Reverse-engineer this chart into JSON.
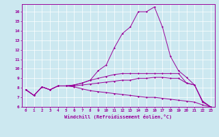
{
  "xlabel": "Windchill (Refroidissement éolien,°C)",
  "xlim": [
    -0.5,
    23.5
  ],
  "ylim": [
    6,
    16.8
  ],
  "xticks": [
    0,
    1,
    2,
    3,
    4,
    5,
    6,
    7,
    8,
    9,
    10,
    11,
    12,
    13,
    14,
    15,
    16,
    17,
    18,
    19,
    20,
    21,
    22,
    23
  ],
  "yticks": [
    6,
    7,
    8,
    9,
    10,
    11,
    12,
    13,
    14,
    15,
    16
  ],
  "background_color": "#cce8f0",
  "line_color": "#990099",
  "grid_color": "#ffffff",
  "series": [
    [
      7.8,
      7.2,
      8.1,
      7.8,
      8.2,
      8.2,
      8.1,
      7.9,
      7.7,
      7.6,
      7.5,
      7.4,
      7.3,
      7.2,
      7.1,
      7.0,
      7.0,
      6.9,
      6.8,
      6.7,
      6.6,
      6.5,
      6.2,
      6.0
    ],
    [
      7.8,
      7.2,
      8.1,
      7.8,
      8.2,
      8.2,
      8.2,
      8.3,
      8.4,
      8.5,
      8.6,
      8.7,
      8.8,
      8.8,
      9.0,
      9.0,
      9.1,
      9.1,
      9.0,
      9.0,
      8.5,
      8.3,
      6.6,
      6.0
    ],
    [
      7.8,
      7.2,
      8.1,
      7.8,
      8.2,
      8.2,
      8.3,
      8.5,
      8.8,
      9.0,
      9.2,
      9.4,
      9.5,
      9.5,
      9.5,
      9.5,
      9.5,
      9.5,
      9.5,
      9.5,
      8.5,
      8.3,
      6.6,
      6.0
    ],
    [
      7.8,
      7.2,
      8.1,
      7.8,
      8.2,
      8.2,
      8.3,
      8.5,
      8.8,
      9.8,
      10.4,
      12.2,
      13.7,
      14.4,
      16.0,
      16.0,
      16.5,
      14.4,
      11.3,
      9.8,
      9.1,
      8.3,
      6.5,
      6.0
    ]
  ]
}
